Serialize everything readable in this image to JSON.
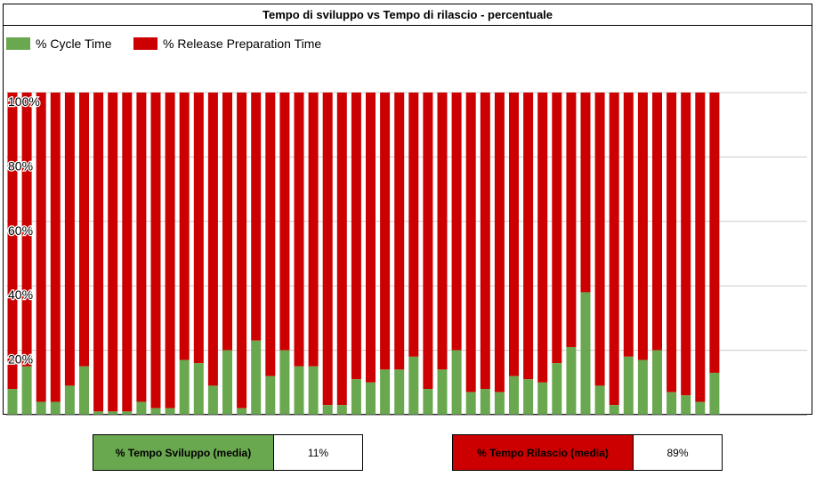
{
  "title": "Tempo di sviluppo vs Tempo di rilascio - percentuale",
  "colors": {
    "cycle": "#6aa84f",
    "release": "#cc0000",
    "grid": "#cccccc"
  },
  "legend": [
    {
      "label": "% Cycle Time",
      "color": "#6aa84f"
    },
    {
      "label": "% Release Preparation Time",
      "color": "#cc0000"
    }
  ],
  "chart_data": {
    "type": "bar",
    "stacked": true,
    "ylim": [
      0,
      100
    ],
    "yticks": [
      "20%",
      "40%",
      "60%",
      "80%",
      "100%"
    ],
    "legend_position": "top-left",
    "grid": true,
    "series": [
      {
        "name": "% Cycle Time",
        "values": [
          8,
          15,
          4,
          4,
          9,
          15,
          1,
          1,
          1,
          4,
          2,
          2,
          17,
          16,
          9,
          20,
          2,
          23,
          12,
          20,
          15,
          15,
          3,
          3,
          11,
          10,
          14,
          14,
          18,
          8,
          14,
          20,
          7,
          8,
          7,
          12,
          11,
          10,
          16,
          21,
          38,
          9,
          3,
          18,
          17,
          20,
          7,
          6,
          4,
          13
        ]
      },
      {
        "name": "% Release Preparation Time",
        "values": [
          92,
          85,
          96,
          96,
          91,
          85,
          99,
          99,
          99,
          96,
          98,
          98,
          83,
          84,
          91,
          80,
          98,
          77,
          88,
          80,
          85,
          85,
          97,
          97,
          89,
          90,
          86,
          86,
          82,
          92,
          86,
          80,
          93,
          92,
          93,
          88,
          89,
          90,
          84,
          79,
          62,
          91,
          97,
          82,
          83,
          80,
          93,
          94,
          96,
          87
        ]
      }
    ]
  },
  "summary": {
    "dev": {
      "label": "% Tempo Sviluppo (media)",
      "value": "11%"
    },
    "release": {
      "label": "% Tempo Rilascio (media)",
      "value": "89%"
    }
  }
}
